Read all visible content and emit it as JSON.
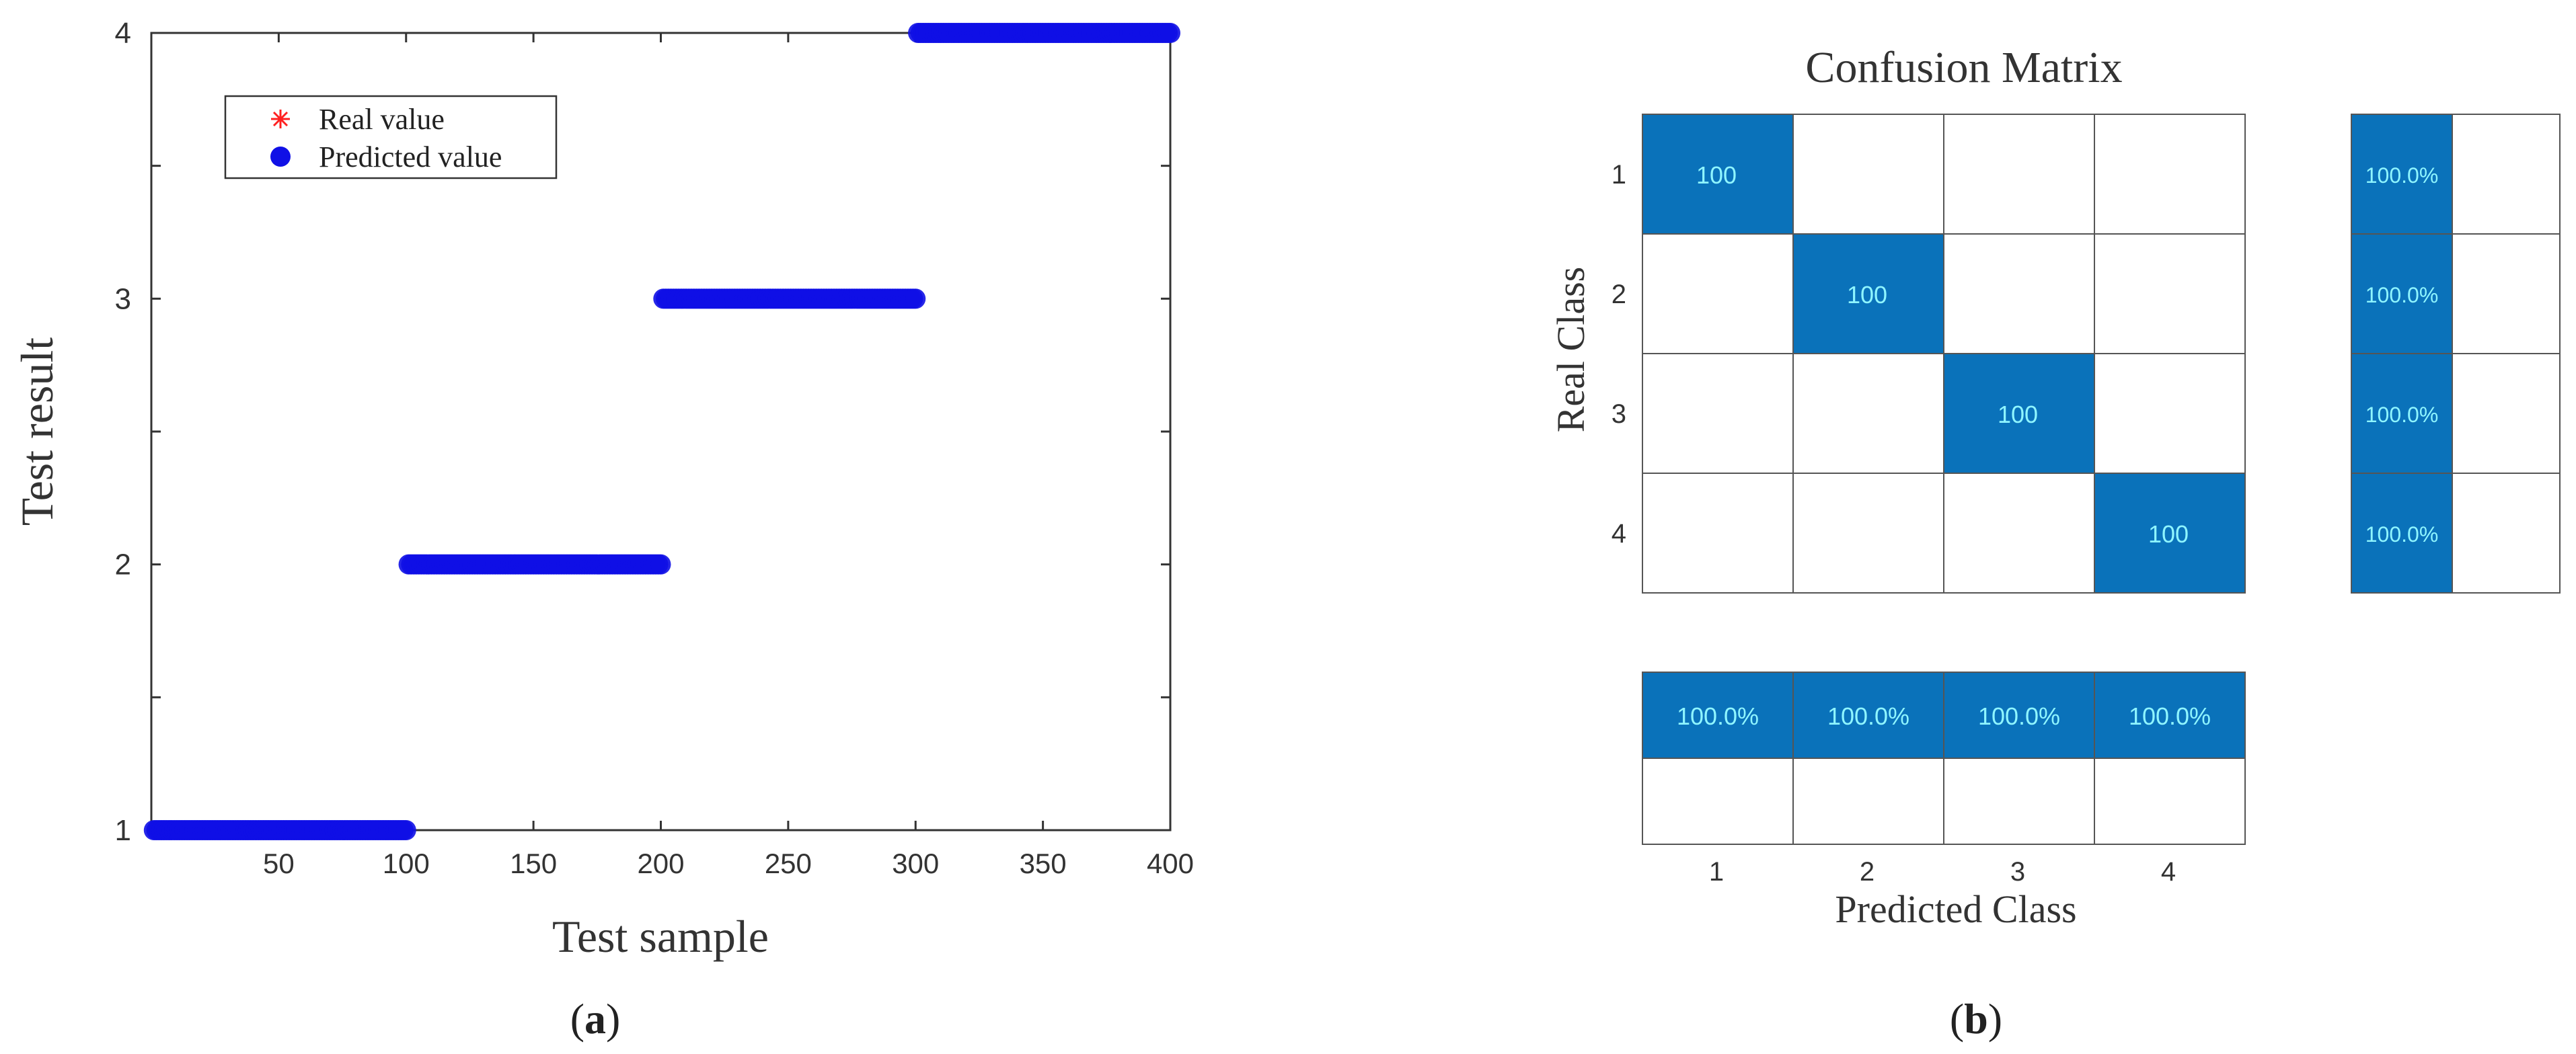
{
  "panels": {
    "a": {
      "label_open": "(",
      "label_letter": "a",
      "label_close": ")"
    },
    "b": {
      "label_open": "(",
      "label_letter": "b",
      "label_close": ")"
    }
  },
  "colors": {
    "real": "#ff2020",
    "predicted": "#1010e6",
    "cell_fill": "#0a72ba",
    "cell_text": "#8ff5ff",
    "grid": "#555555"
  },
  "chart_data": [
    {
      "type": "scatter",
      "title": "",
      "xlabel": "Test sample",
      "ylabel": "Test result",
      "xlim": [
        0,
        400
      ],
      "ylim": [
        1,
        4
      ],
      "xticks": [
        50,
        100,
        150,
        200,
        250,
        300,
        350,
        400
      ],
      "yticks": [
        1,
        2,
        3,
        4
      ],
      "ytick_minor": [
        1.5,
        2.5,
        3.5
      ],
      "legend": {
        "placement": "top-left",
        "entries": [
          "Real value",
          "Predicted value"
        ]
      },
      "series": [
        {
          "name": "Real value",
          "marker": "asterisk",
          "segments": [
            {
              "x_start": 1,
              "x_end": 100,
              "y": 1
            },
            {
              "x_start": 101,
              "x_end": 200,
              "y": 2
            },
            {
              "x_start": 201,
              "x_end": 300,
              "y": 3
            },
            {
              "x_start": 301,
              "x_end": 400,
              "y": 4
            }
          ]
        },
        {
          "name": "Predicted value",
          "marker": "circle",
          "segments": [
            {
              "x_start": 1,
              "x_end": 100,
              "y": 1
            },
            {
              "x_start": 101,
              "x_end": 200,
              "y": 2
            },
            {
              "x_start": 201,
              "x_end": 300,
              "y": 3
            },
            {
              "x_start": 301,
              "x_end": 400,
              "y": 4
            }
          ]
        }
      ]
    },
    {
      "type": "heatmap",
      "title": "Confusion Matrix",
      "xlabel": "Predicted Class",
      "ylabel": "Real Class",
      "row_labels": [
        "1",
        "2",
        "3",
        "4"
      ],
      "col_labels": [
        "1",
        "2",
        "3",
        "4"
      ],
      "matrix": [
        [
          100,
          null,
          null,
          null
        ],
        [
          null,
          100,
          null,
          null
        ],
        [
          null,
          null,
          100,
          null
        ],
        [
          null,
          null,
          null,
          100
        ]
      ],
      "row_summary": [
        [
          "100.0%",
          ""
        ],
        [
          "100.0%",
          ""
        ],
        [
          "100.0%",
          ""
        ],
        [
          "100.0%",
          ""
        ]
      ],
      "column_summary": [
        [
          "100.0%",
          "100.0%",
          "100.0%",
          "100.0%"
        ],
        [
          "",
          "",
          "",
          ""
        ]
      ]
    }
  ]
}
